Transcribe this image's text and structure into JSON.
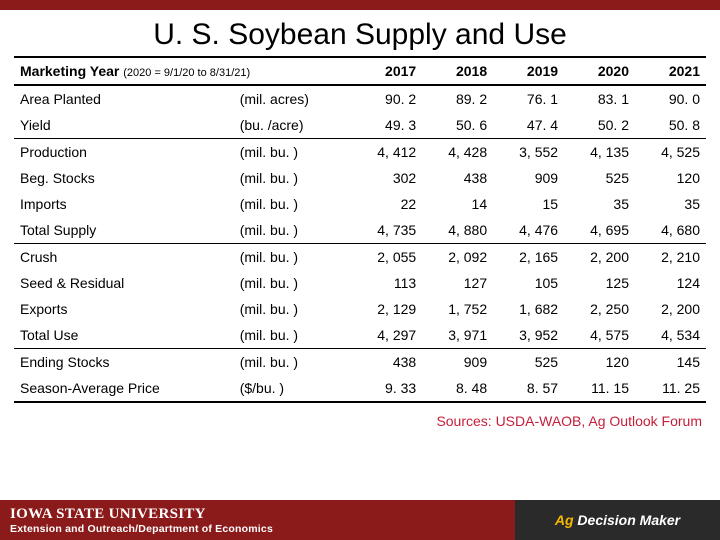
{
  "title": "U. S. Soybean Supply and Use",
  "header": {
    "marketing_year_label": "Marketing Year",
    "marketing_year_sub": "(2020 = 9/1/20 to 8/31/21)",
    "years": [
      "2017",
      "2018",
      "2019",
      "2020",
      "2021"
    ]
  },
  "rows": [
    {
      "label": "Area Planted",
      "unit": "(mil. acres)",
      "vals": [
        "90. 2",
        "89. 2",
        "76. 1",
        "83. 1",
        "90. 0"
      ],
      "section_end": false
    },
    {
      "label": "Yield",
      "unit": "(bu. /acre)",
      "vals": [
        "49. 3",
        "50. 6",
        "47. 4",
        "50. 2",
        "50. 8"
      ],
      "section_end": true
    },
    {
      "label": "Production",
      "unit": "(mil. bu. )",
      "vals": [
        "4, 412",
        "4, 428",
        "3, 552",
        "4, 135",
        "4, 525"
      ],
      "section_end": false
    },
    {
      "label": "Beg. Stocks",
      "unit": "(mil. bu. )",
      "vals": [
        "302",
        "438",
        "909",
        "525",
        "120"
      ],
      "section_end": false
    },
    {
      "label": "Imports",
      "unit": "(mil. bu. )",
      "vals": [
        "22",
        "14",
        "15",
        "35",
        "35"
      ],
      "section_end": false
    },
    {
      "label": "Total Supply",
      "unit": "(mil. bu. )",
      "vals": [
        "4, 735",
        "4, 880",
        "4, 476",
        "4, 695",
        "4, 680"
      ],
      "section_end": true
    },
    {
      "label": "Crush",
      "unit": "(mil. bu. )",
      "vals": [
        "2, 055",
        "2, 092",
        "2, 165",
        "2, 200",
        "2, 210"
      ],
      "section_end": false
    },
    {
      "label": "Seed & Residual",
      "unit": "(mil. bu. )",
      "vals": [
        "113",
        "127",
        "105",
        "125",
        "124"
      ],
      "section_end": false
    },
    {
      "label": "Exports",
      "unit": "(mil. bu. )",
      "vals": [
        "2, 129",
        "1, 752",
        "1, 682",
        "2, 250",
        "2, 200"
      ],
      "section_end": false
    },
    {
      "label": "Total Use",
      "unit": "(mil. bu. )",
      "vals": [
        "4, 297",
        "3, 971",
        "3, 952",
        "4, 575",
        "4, 534"
      ],
      "section_end": true
    },
    {
      "label": "Ending Stocks",
      "unit": "(mil. bu. )",
      "vals": [
        "438",
        "909",
        "525",
        "120",
        "145"
      ],
      "section_end": false
    },
    {
      "label": "Season-Average Price",
      "unit": "($/bu. )",
      "vals": [
        "9. 33",
        "8. 48",
        "8. 57",
        "11. 15",
        "11. 25"
      ],
      "section_end": false
    }
  ],
  "sources": "Sources: USDA-WAOB, Ag Outlook Forum",
  "footer": {
    "brand": "IOWA STATE UNIVERSITY",
    "dept": "Extension and Outreach/Department of Economics",
    "ag": "Ag",
    "dm": "Decision Maker"
  },
  "colors": {
    "maroon": "#8b1a1a",
    "source_red": "#c41e3a",
    "footer_dark": "#2a2a2a",
    "gold": "#f5b800"
  }
}
